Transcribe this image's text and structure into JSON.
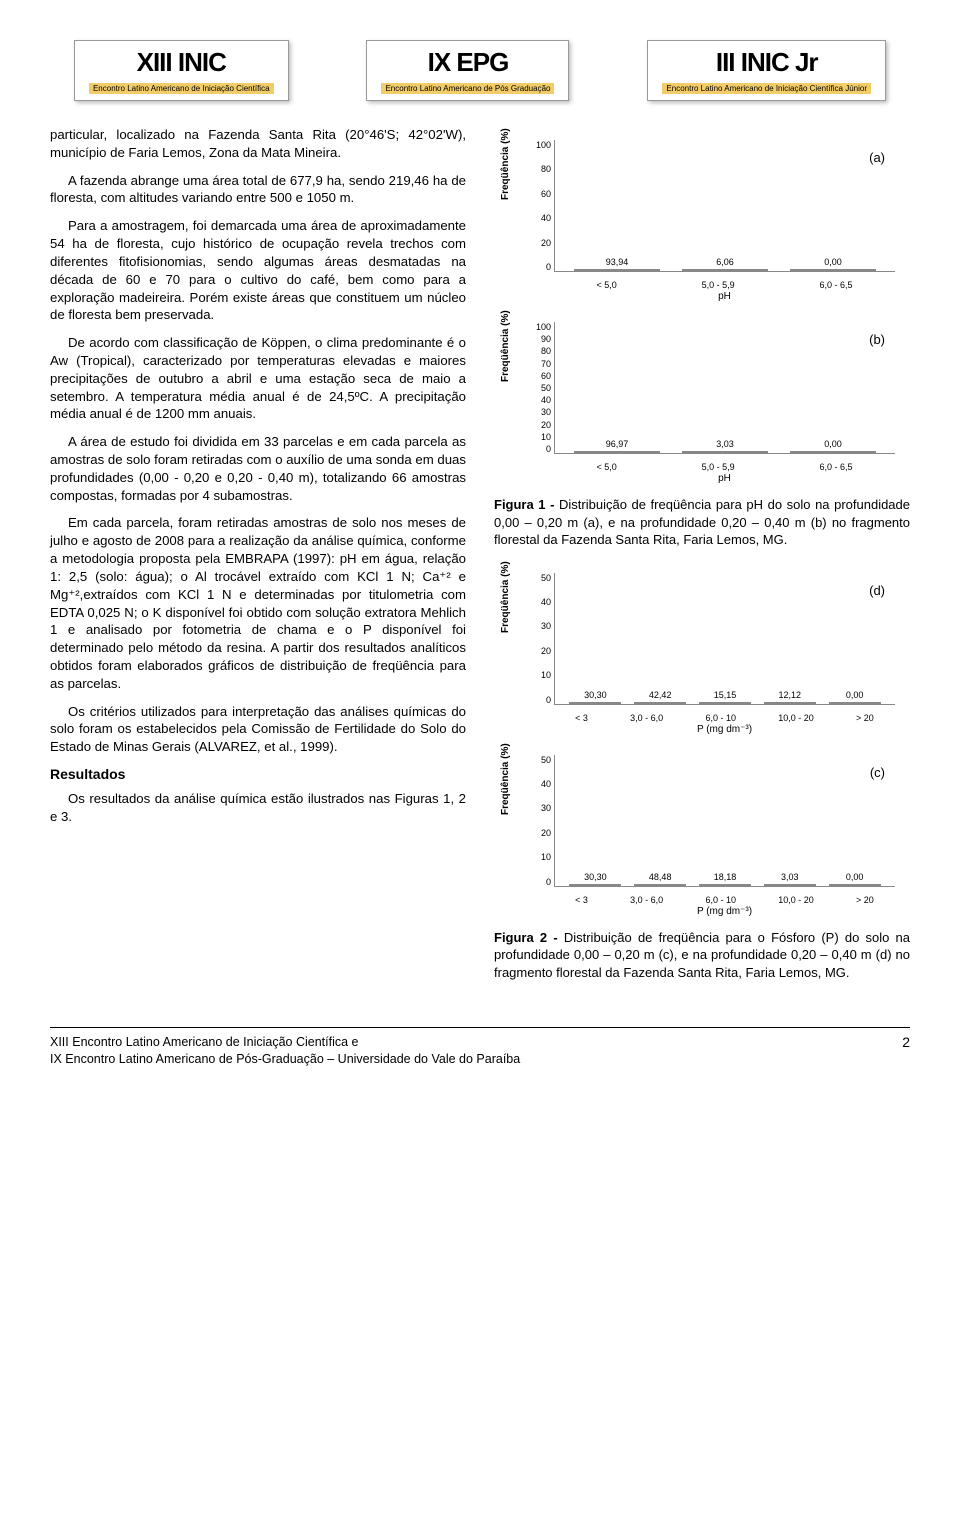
{
  "header": {
    "logos": [
      {
        "title": "XIII INIC",
        "sub": "Encontro Latino Americano de Iniciação Científica"
      },
      {
        "title": "IX EPG",
        "sub": "Encontro Latino Americano de Pós Graduação"
      },
      {
        "title": "III INIC Jr",
        "sub": "Encontro Latino Americano de Iniciação Científica Júnior"
      }
    ]
  },
  "left_column": {
    "p1": "particular, localizado na Fazenda Santa Rita (20°46'S; 42°02'W), município de Faria Lemos, Zona da Mata Mineira.",
    "p2": "A fazenda abrange uma área total de 677,9 ha, sendo 219,46 ha de floresta, com altitudes variando entre 500 e 1050 m.",
    "p3": "Para a amostragem, foi demarcada uma área de aproximadamente 54 ha de floresta, cujo histórico de ocupação revela trechos com diferentes fitofisionomias, sendo algumas áreas desmatadas na década de 60 e 70 para o cultivo do café, bem como para a exploração madeireira. Porém existe áreas que constituem um núcleo de floresta bem preservada.",
    "p4": "De acordo com classificação de Köppen, o clima predominante é o Aw (Tropical), caracterizado por temperaturas elevadas e maiores precipitações de outubro a abril e uma estação seca de maio a setembro. A temperatura média anual é de 24,5ºC. A precipitação média anual é de 1200 mm anuais.",
    "p5": "A área de estudo foi dividida em 33 parcelas e em cada parcela as amostras de solo foram retiradas com o auxílio de uma sonda em duas profundidades (0,00 - 0,20 e 0,20 - 0,40 m), totalizando 66 amostras compostas, formadas por 4 subamostras.",
    "p6": "Em cada parcela, foram retiradas amostras de solo nos meses de julho e agosto de 2008 para a realização da análise química, conforme a metodologia proposta pela EMBRAPA (1997): pH em água, relação 1: 2,5 (solo: água); o Al trocável extraído com KCl 1 N; Ca⁺² e Mg⁺²,extraídos com KCl 1 N e determinadas por titulometria com EDTA 0,025 N; o K disponível foi obtido com solução extratora Mehlich 1  e analisado por fotometria de chama e o P disponível foi determinado pelo método da resina.  A partir dos resultados analíticos obtidos foram elaborados gráficos de distribuição de freqüência para as parcelas.",
    "p7": "Os critérios utilizados para interpretação das análises químicas do solo foram os estabelecidos pela Comissão de Fertilidade do Solo do Estado de Minas Gerais (ALVAREZ, et al., 1999).",
    "results_heading": "Resultados",
    "p8": "Os resultados da análise química estão ilustrados nas Figuras 1, 2 e 3."
  },
  "charts": {
    "a": {
      "panel": "(a)",
      "ylabel": "Freqüência (%)",
      "xlabel": "pH",
      "categories": [
        "< 5,0",
        "5,0 - 5,9",
        "6,0 - 6,5"
      ],
      "values": [
        93.94,
        6.06,
        0.0
      ],
      "value_labels": [
        "93,94",
        "6,06",
        "0,00"
      ],
      "ymax": 100,
      "yticks": [
        "100",
        "80",
        "60",
        "40",
        "20",
        "0"
      ],
      "bar_color": "#d0d0d0"
    },
    "b": {
      "panel": "(b)",
      "ylabel": "Freqüência (%)",
      "xlabel": "pH",
      "categories": [
        "< 5,0",
        "5,0 - 5,9",
        "6,0 - 6,5"
      ],
      "values": [
        96.97,
        3.03,
        0.0
      ],
      "value_labels": [
        "96,97",
        "3,03",
        "0,00"
      ],
      "ymax": 100,
      "yticks": [
        "100",
        "90",
        "80",
        "70",
        "60",
        "50",
        "40",
        "30",
        "20",
        "10",
        "0"
      ],
      "bar_color": "#d0d0d0"
    },
    "d": {
      "panel": "(d)",
      "ylabel": "Freqüência (%)",
      "xlabel": "P (mg dm⁻³)",
      "categories": [
        "< 3",
        "3,0 - 6,0",
        "6,0 - 10",
        "10,0 - 20",
        "> 20"
      ],
      "values": [
        30.3,
        42.42,
        15.15,
        12.12,
        0.0
      ],
      "value_labels": [
        "30,30",
        "42,42",
        "15,15",
        "12,12",
        "0,00"
      ],
      "ymax": 50,
      "yticks": [
        "50",
        "40",
        "30",
        "20",
        "10",
        "0"
      ],
      "bar_color": "#d0d0d0"
    },
    "c": {
      "panel": "(c)",
      "ylabel": "Freqüência (%)",
      "xlabel": "P (mg dm⁻³)",
      "categories": [
        "< 3",
        "3,0 - 6,0",
        "6,0 - 10",
        "10,0 - 20",
        "> 20"
      ],
      "values": [
        30.3,
        48.48,
        18.18,
        3.03,
        0.0
      ],
      "value_labels": [
        "30,30",
        "48,48",
        "18,18",
        "3,03",
        "0,00"
      ],
      "ymax": 50,
      "yticks": [
        "50",
        "40",
        "30",
        "20",
        "10",
        "0"
      ],
      "bar_color": "#d0d0d0"
    }
  },
  "captions": {
    "fig1_bold": "Figura 1 - ",
    "fig1_text": "Distribuição de freqüência para pH do solo na profundidade 0,00 – 0,20 m (a), e na profundidade 0,20 – 0,40 m (b) no fragmento florestal da Fazenda Santa Rita, Faria Lemos, MG.",
    "fig2_bold": "Figura 2 - ",
    "fig2_text": "Distribuição de freqüência para o Fósforo (P) do solo na profundidade 0,00 – 0,20 m (c), e na profundidade 0,20 – 0,40 m (d) no fragmento florestal da Fazenda Santa Rita, Faria Lemos, MG."
  },
  "footer": {
    "line1": "XIII Encontro Latino Americano de Iniciação Científica e",
    "line2": "IX Encontro Latino Americano de Pós-Graduação – Universidade do Vale do Paraíba",
    "page": "2"
  }
}
